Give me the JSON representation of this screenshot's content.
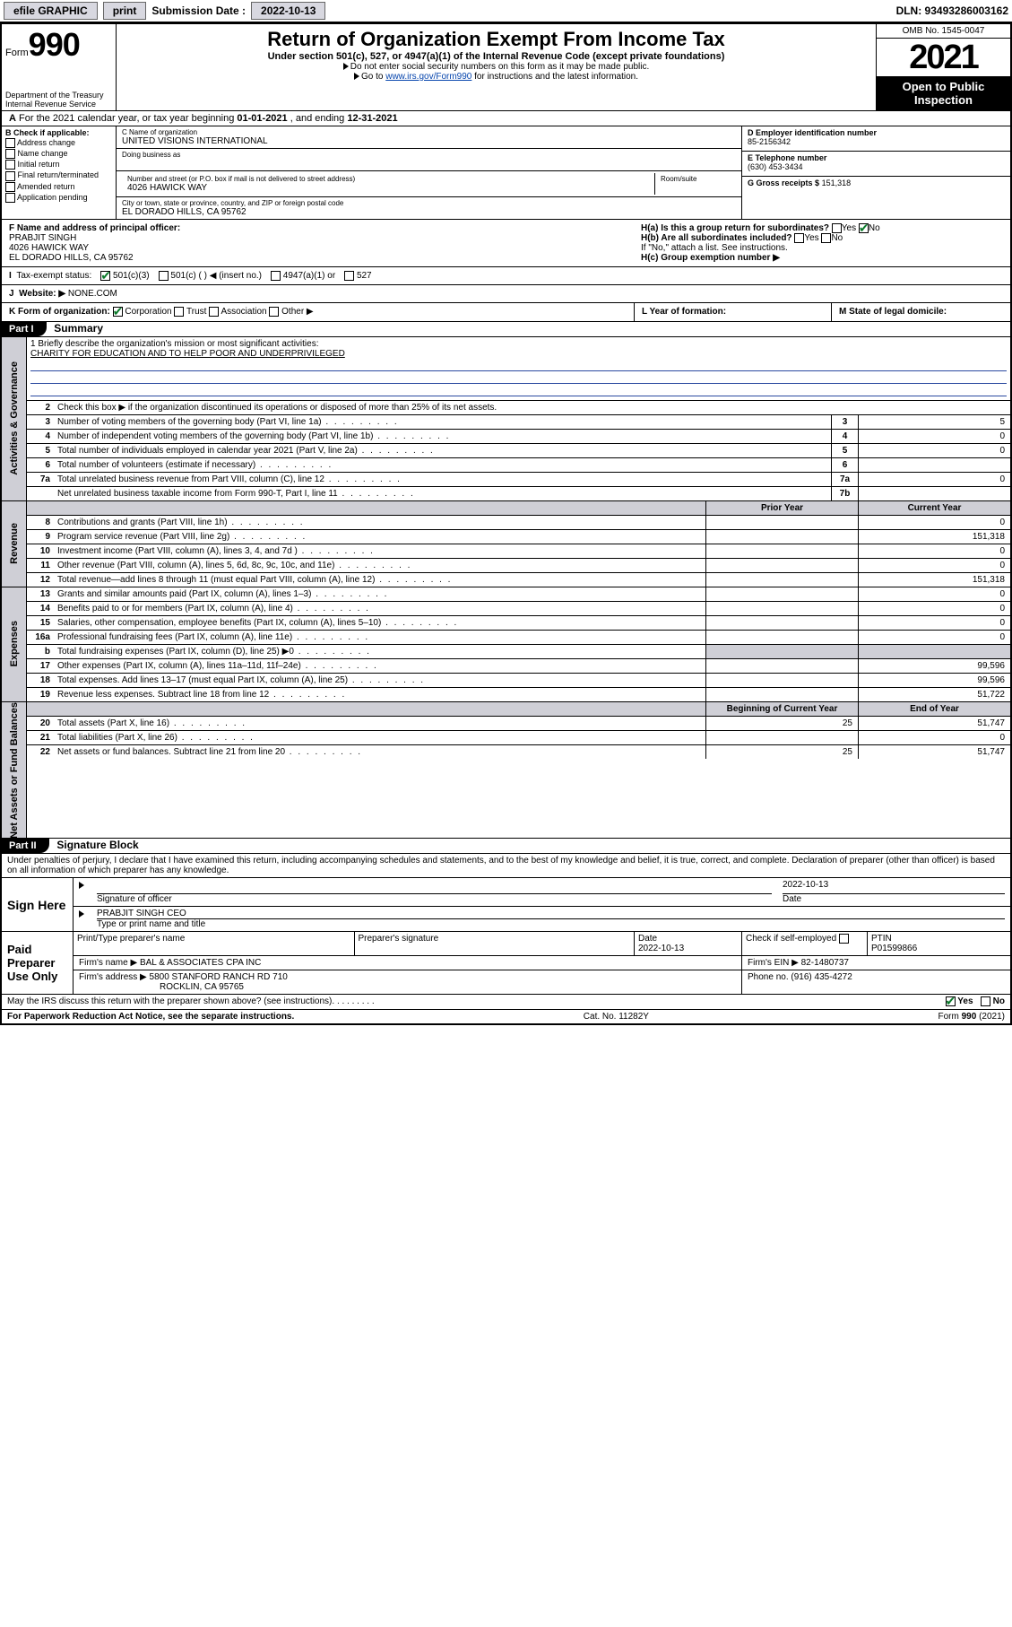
{
  "topbar": {
    "efile": "efile GRAPHIC",
    "print": "print",
    "subm_lbl": "Submission Date :",
    "subm_date": "2022-10-13",
    "dln": "DLN: 93493286003162"
  },
  "header": {
    "form_small": "Form",
    "form_big": "990",
    "dept": "Department of the Treasury",
    "irs": "Internal Revenue Service",
    "title": "Return of Organization Exempt From Income Tax",
    "sub1": "Under section 501(c), 527, or 4947(a)(1) of the Internal Revenue Code (except private foundations)",
    "sub2": "Do not enter social security numbers on this form as it may be made public.",
    "sub3_pre": "Go to ",
    "sub3_link": "www.irs.gov/Form990",
    "sub3_post": " for instructions and the latest information.",
    "omb": "OMB No. 1545-0047",
    "year": "2021",
    "open": "Open to Public Inspection"
  },
  "rowA": {
    "a": "A",
    "text1": "For the 2021 calendar year, or tax year beginning ",
    "begin": "01-01-2021",
    "mid": " , and ending ",
    "end": "12-31-2021"
  },
  "colB": {
    "lbl": "B Check if applicable:",
    "items": [
      "Address change",
      "Name change",
      "Initial return",
      "Final return/terminated",
      "Amended return",
      "Application pending"
    ]
  },
  "colC": {
    "name_lbl": "C Name of organization",
    "name": "UNITED VISIONS INTERNATIONAL",
    "dba_lbl": "Doing business as",
    "addr_lbl": "Number and street (or P.O. box if mail is not delivered to street address)",
    "room_lbl": "Room/suite",
    "addr": "4026 HAWICK WAY",
    "city_lbl": "City or town, state or province, country, and ZIP or foreign postal code",
    "city": "EL DORADO HILLS, CA  95762"
  },
  "colD": {
    "ein_lbl": "D Employer identification number",
    "ein": "85-2156342",
    "tel_lbl": "E Telephone number",
    "tel": "(630) 453-3434",
    "gross_lbl": "G Gross receipts $",
    "gross": "151,318"
  },
  "rowF": {
    "f_lbl": "F Name and address of principal officer:",
    "name": "PRABJIT SINGH",
    "addr1": "4026 HAWICK WAY",
    "addr2": "EL DORADO HILLS, CA  95762",
    "ha": "H(a)  Is this a group return for subordinates?",
    "ha_yes": "Yes",
    "ha_no": "No",
    "hb": "H(b)  Are all subordinates included?",
    "hb_yes": "Yes",
    "hb_no": "No",
    "hb_note": "If \"No,\" attach a list. See instructions.",
    "hc": "H(c)  Group exemption number ▶"
  },
  "rowI": {
    "lbl": "Tax-exempt status:",
    "o1": "501(c)(3)",
    "o2": "501(c) (   ) ◀ (insert no.)",
    "o3": "4947(a)(1) or",
    "o4": "527"
  },
  "rowJ": {
    "lbl": "Website: ▶",
    "val": "NONE.COM"
  },
  "rowK": {
    "lbl": "K Form of organization:",
    "corp": "Corporation",
    "trust": "Trust",
    "assoc": "Association",
    "other": "Other ▶",
    "l_lbl": "L Year of formation:",
    "m_lbl": "M State of legal domicile:"
  },
  "part1": {
    "hdr": "Part I",
    "title": "Summary"
  },
  "gov": {
    "vtab": "Activities & Governance",
    "l1_lbl": "1  Briefly describe the organization's mission or most significant activities:",
    "l1_val": "CHARITY FOR EDUCATION AND TO HELP POOR AND UNDERPRIVILEGED",
    "l2": "Check this box ▶       if the organization discontinued its operations or disposed of more than 25% of its net assets.",
    "rows": [
      {
        "n": "3",
        "t": "Number of voting members of the governing body (Part VI, line 1a)",
        "b": "3",
        "v": "5"
      },
      {
        "n": "4",
        "t": "Number of independent voting members of the governing body (Part VI, line 1b)",
        "b": "4",
        "v": "0"
      },
      {
        "n": "5",
        "t": "Total number of individuals employed in calendar year 2021 (Part V, line 2a)",
        "b": "5",
        "v": "0"
      },
      {
        "n": "6",
        "t": "Total number of volunteers (estimate if necessary)",
        "b": "6",
        "v": ""
      },
      {
        "n": "7a",
        "t": "Total unrelated business revenue from Part VIII, column (C), line 12",
        "b": "7a",
        "v": "0"
      },
      {
        "n": "",
        "t": "Net unrelated business taxable income from Form 990-T, Part I, line 11",
        "b": "7b",
        "v": ""
      }
    ]
  },
  "twocol": {
    "prior": "Prior Year",
    "current": "Current Year"
  },
  "rev": {
    "vtab": "Revenue",
    "rows": [
      {
        "n": "8",
        "t": "Contributions and grants (Part VIII, line 1h)",
        "p": "",
        "c": "0"
      },
      {
        "n": "9",
        "t": "Program service revenue (Part VIII, line 2g)",
        "p": "",
        "c": "151,318"
      },
      {
        "n": "10",
        "t": "Investment income (Part VIII, column (A), lines 3, 4, and 7d )",
        "p": "",
        "c": "0"
      },
      {
        "n": "11",
        "t": "Other revenue (Part VIII, column (A), lines 5, 6d, 8c, 9c, 10c, and 11e)",
        "p": "",
        "c": "0"
      },
      {
        "n": "12",
        "t": "Total revenue—add lines 8 through 11 (must equal Part VIII, column (A), line 12)",
        "p": "",
        "c": "151,318"
      }
    ]
  },
  "exp": {
    "vtab": "Expenses",
    "rows": [
      {
        "n": "13",
        "t": "Grants and similar amounts paid (Part IX, column (A), lines 1–3)",
        "p": "",
        "c": "0"
      },
      {
        "n": "14",
        "t": "Benefits paid to or for members (Part IX, column (A), line 4)",
        "p": "",
        "c": "0"
      },
      {
        "n": "15",
        "t": "Salaries, other compensation, employee benefits (Part IX, column (A), lines 5–10)",
        "p": "",
        "c": "0"
      },
      {
        "n": "16a",
        "t": "Professional fundraising fees (Part IX, column (A), line 11e)",
        "p": "",
        "c": "0"
      },
      {
        "n": "b",
        "t": "Total fundraising expenses (Part IX, column (D), line 25) ▶0",
        "p": "SHADE",
        "c": "SHADE"
      },
      {
        "n": "17",
        "t": "Other expenses (Part IX, column (A), lines 11a–11d, 11f–24e)",
        "p": "",
        "c": "99,596"
      },
      {
        "n": "18",
        "t": "Total expenses. Add lines 13–17 (must equal Part IX, column (A), line 25)",
        "p": "",
        "c": "99,596"
      },
      {
        "n": "19",
        "t": "Revenue less expenses. Subtract line 18 from line 12",
        "p": "",
        "c": "51,722"
      }
    ]
  },
  "net": {
    "vtab": "Net Assets or Fund Balances",
    "hdr_begin": "Beginning of Current Year",
    "hdr_end": "End of Year",
    "rows": [
      {
        "n": "20",
        "t": "Total assets (Part X, line 16)",
        "p": "25",
        "c": "51,747"
      },
      {
        "n": "21",
        "t": "Total liabilities (Part X, line 26)",
        "p": "",
        "c": "0"
      },
      {
        "n": "22",
        "t": "Net assets or fund balances. Subtract line 21 from line 20",
        "p": "25",
        "c": "51,747"
      }
    ]
  },
  "part2": {
    "hdr": "Part II",
    "title": "Signature Block"
  },
  "decl": "Under penalties of perjury, I declare that I have examined this return, including accompanying schedules and statements, and to the best of my knowledge and belief, it is true, correct, and complete. Declaration of preparer (other than officer) is based on all information of which preparer has any knowledge.",
  "sign": {
    "left": "Sign Here",
    "sig_lbl": "Signature of officer",
    "date_lbl": "Date",
    "date_val": "2022-10-13",
    "name": "PRABJIT SINGH  CEO",
    "name_lbl": "Type or print name and title"
  },
  "paid": {
    "left": "Paid Preparer Use Only",
    "h_name": "Print/Type preparer's name",
    "h_sig": "Preparer's signature",
    "h_date": "Date",
    "date": "2022-10-13",
    "h_chk": "Check        if self-employed",
    "h_ptin": "PTIN",
    "ptin": "P01599866",
    "firm_name_lbl": "Firm's name     ▶",
    "firm_name": "BAL & ASSOCIATES CPA INC",
    "firm_ein_lbl": "Firm's EIN ▶",
    "firm_ein": "82-1480737",
    "firm_addr_lbl": "Firm's address ▶",
    "firm_addr1": "5800 STANFORD RANCH RD 710",
    "firm_addr2": "ROCKLIN, CA  95765",
    "phone_lbl": "Phone no.",
    "phone": "(916) 435-4272"
  },
  "discuss": {
    "q": "May the IRS discuss this return with the preparer shown above? (see instructions)",
    "yes": "Yes",
    "no": "No"
  },
  "footer": {
    "left": "For Paperwork Reduction Act Notice, see the separate instructions.",
    "mid": "Cat. No. 11282Y",
    "right_pre": "Form ",
    "right_b": "990",
    "right_post": " (2021)"
  },
  "colors": {
    "link": "#0645ad",
    "shade": "#cfcfd6",
    "check": "#0a7a2a",
    "missionline": "#2b4aa0"
  }
}
